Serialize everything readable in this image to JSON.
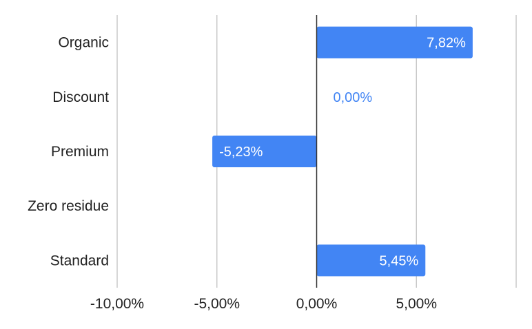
{
  "chart_data": {
    "type": "bar",
    "orientation": "horizontal",
    "categories": [
      "Organic",
      "Discount",
      "Premium",
      "Zero residue",
      "Standard"
    ],
    "values": [
      7.82,
      0.0,
      -5.23,
      null,
      5.45
    ],
    "data_labels": [
      "7,82%",
      "0,00%",
      "-5,23%",
      "",
      "5,45%"
    ],
    "xlim": [
      -10,
      10
    ],
    "x_ticks": [
      -10,
      -5,
      0,
      5
    ],
    "x_tick_labels": [
      "-10,00%",
      "-5,00%",
      "0,00%",
      "5,00%"
    ],
    "grid": true,
    "legend": "none",
    "bar_color": "#4285f4",
    "zero_label_color": "#4285f4",
    "label_inside_color": "#ffffff"
  }
}
